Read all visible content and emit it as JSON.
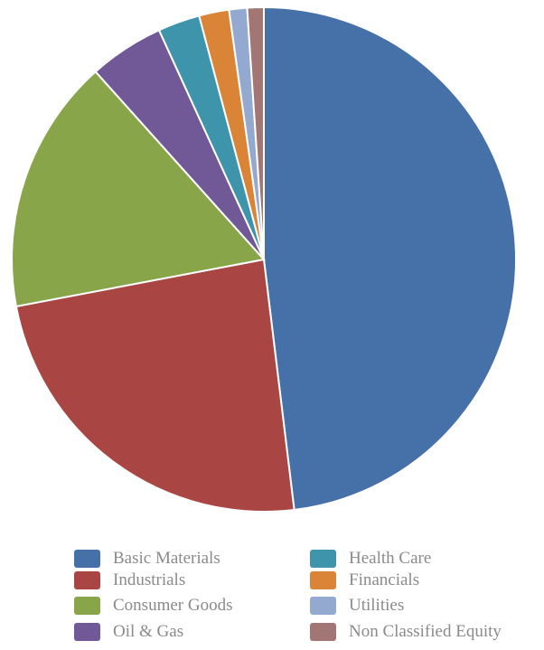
{
  "chart_data": {
    "type": "pie",
    "categories": [
      "Basic Materials",
      "Industrials",
      "Consumer Goods",
      "Oil & Gas",
      "Health Care",
      "Financials",
      "Utilities",
      "Non Classified Equity"
    ],
    "values": [
      50.0,
      24.9,
      17.0,
      5.0,
      2.8,
      2.0,
      1.2,
      1.1
    ],
    "colors": [
      "#4571a8",
      "#a94543",
      "#88a54a",
      "#715897",
      "#3e95ab",
      "#da8437",
      "#93a9d0",
      "#a17675"
    ],
    "start_angle_deg": 0,
    "direction": "clockwise",
    "legend_position": "bottom"
  }
}
